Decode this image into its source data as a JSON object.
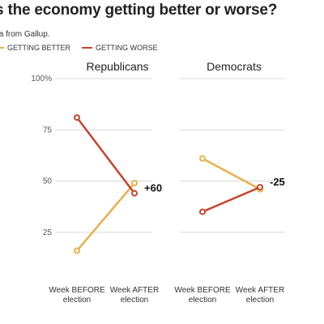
{
  "header": {
    "title": "s the economy getting better or worse?",
    "subtitle": "ta from Gallup.",
    "legend": [
      {
        "label": "GETTING BETTER",
        "color": "#e8b04b"
      },
      {
        "label": "GETTING WORSE",
        "color": "#c4452d"
      }
    ]
  },
  "chart_data": {
    "type": "line",
    "categories": [
      "Week BEFORE election",
      "Week AFTER election"
    ],
    "yticks": [
      "100%",
      "75",
      "50",
      "25"
    ],
    "ylim": [
      0,
      100
    ],
    "grid": true,
    "legend_position": "top-left",
    "panels": [
      {
        "title": "Republicans",
        "series": [
          {
            "name": "GETTING BETTER",
            "color": "#e8b04b",
            "values": [
              16,
              49
            ]
          },
          {
            "name": "GETTING WORSE",
            "color": "#c4452d",
            "values": [
              81,
              44
            ]
          }
        ],
        "annotation": "+60"
      },
      {
        "title": "Democrats",
        "series": [
          {
            "name": "GETTING BETTER",
            "color": "#e8b04b",
            "values": [
              61,
              46
            ]
          },
          {
            "name": "GETTING WORSE",
            "color": "#c4452d",
            "values": [
              35,
              47
            ]
          }
        ],
        "annotation": "-25"
      }
    ]
  }
}
